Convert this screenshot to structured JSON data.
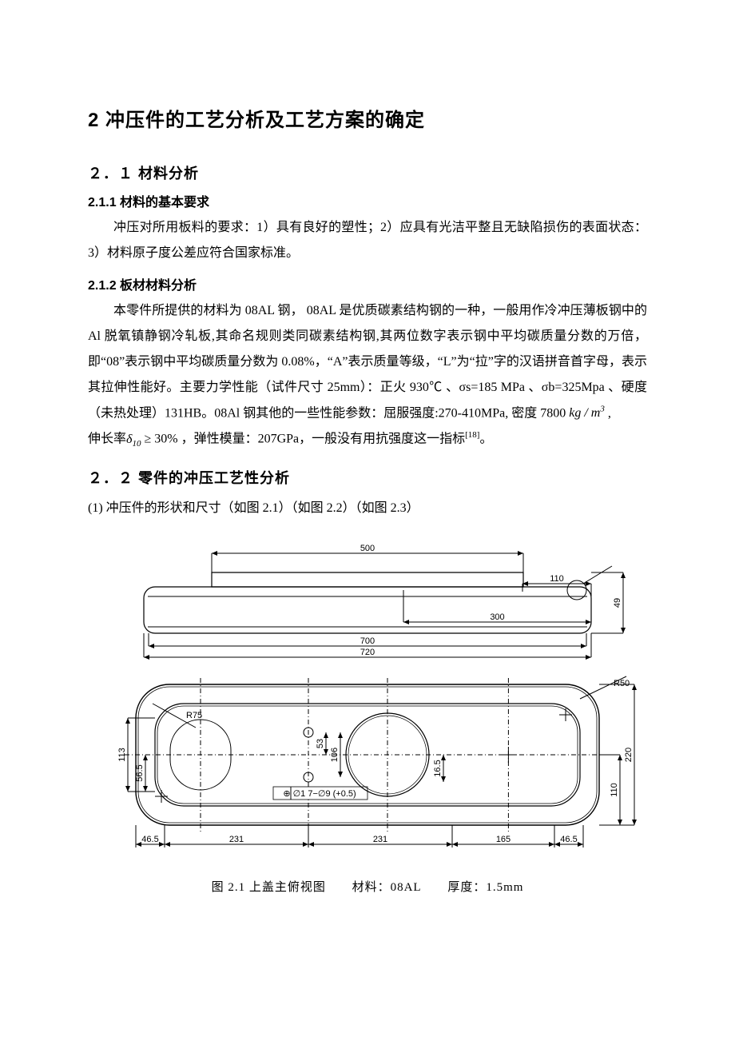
{
  "heading1": "2  冲压件的工艺分析及工艺方案的确定",
  "section_2_1": {
    "title": "２．１  材料分析",
    "s211_title": "2.1.1  材料的基本要求",
    "s211_p": "冲压对所用板料的要求：1）具有良好的塑性；2）应具有光洁平整且无缺陷损伤的表面状态：3）材料原子度公差应符合国家标准。",
    "s212_title": "2.1.2  板材材料分析",
    "s212_p1": "本零件所提供的材料为 08AL 钢，  08AL 是优质碳素结构钢的一种，一般用作冷冲压薄板钢中的 Al 脱氧镇静钢冷轧板,其命名规则类同碳素结构钢,其两位数字表示钢中平均碳质量分数的万倍，即“08”表示钢中平均碳质量分数为 0.08%，“A”表示质量等级，“L”为“拉”字的汉语拼音首字母，表示其拉伸性能好。主要力学性能（试件尺寸 25mm）：正火 930℃ 、σs=185 MPa 、σb=325Mpa 、硬度（未热处理）131HB。08Al 钢其他的一些性能参数：屈服强度:270-410MPa, 密度 7800 ",
    "s212_kg_m3_pre": "kg / m",
    "s212_kg_m3_sup": "3",
    "s212_p1_tail": " ,",
    "s212_p2_pre": "伸长率",
    "s212_delta": "δ",
    "s212_delta_sub": "10",
    "s212_ge30": " ≥ 30% ",
    "s212_p2_tail1": "，弹性模量：207GPa，一般没有用抗强度这一指标",
    "s212_ref_sup": "[18]",
    "s212_p2_tail2": "。"
  },
  "section_2_2": {
    "title": "２．２  零件的冲压工艺性分析",
    "line1": "(1)  冲压件的形状和尺寸（如图 2.1）（如图 2.2）（如图 2.3）"
  },
  "figure": {
    "drawing": {
      "stroke": "#000000",
      "fill": "#ffffff",
      "font_family": "Arial, sans-serif",
      "font_size_dim": 11,
      "top_view": {
        "dims": {
          "overall_500": "500",
          "inner_700": "700",
          "overall_720": "720",
          "right_300": "300",
          "right_110": "110",
          "right_49": "49"
        },
        "body_w": 560,
        "body_h": 58,
        "raised_w": 390,
        "raised_h": 18,
        "corner_r": 14
      },
      "plan_view": {
        "dims": {
          "left_465": "46.5",
          "d231_a": "231",
          "d231_b": "231",
          "d165": "165",
          "right_465": "46.5",
          "h_113": "113",
          "h_565": "56.5",
          "r_75": "R75",
          "h_53": "53",
          "h_106": "106",
          "tol": "⊕ ∅1  7−∅9 (+0.5)",
          "d_165r": "16.5",
          "h_220": "220",
          "h_110": "110",
          "r_50": "R50"
        },
        "outer_w": 580,
        "outer_h": 176,
        "outer_r": 42,
        "inner_off": 24
      }
    },
    "caption": {
      "c1": "图 2.1  上盖主俯视图",
      "c2": "材料：08AL",
      "c3": "厚度：1.5mm"
    }
  }
}
